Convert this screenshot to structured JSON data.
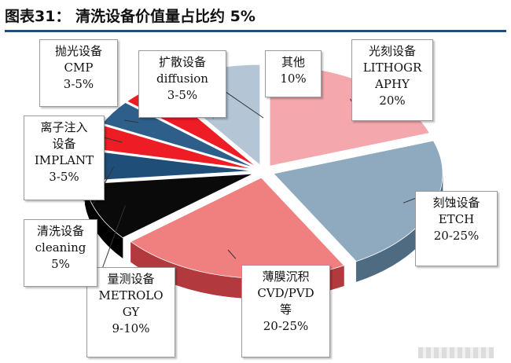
{
  "figure_title": "图表31： 清洗设备价值量占比约 5%",
  "chart_data": {
    "type": "pie",
    "title": "",
    "style": "3d-exploded",
    "slices": [
      {
        "label": "光刻设备 LITHOGRAPHY",
        "label_lines": [
          "光刻设备",
          "LITHOGR",
          "APHY",
          "20%"
        ],
        "value_text": "20%",
        "value": 20,
        "color": "#f4a7ac",
        "side": "#d98b90"
      },
      {
        "label": "刻蚀设备 ETCH",
        "label_lines": [
          "刻蚀设备",
          "ETCH",
          "20-25%"
        ],
        "value_text": "20-25%",
        "value": 22.5,
        "color": "#8faabf",
        "side": "#4f6b82"
      },
      {
        "label": "薄膜沉积 CVD/PVD等",
        "label_lines": [
          "薄膜沉积",
          "CVD/PVD",
          "等",
          "20-25%"
        ],
        "value_text": "20-25%",
        "value": 22.5,
        "color": "#f07f80",
        "side": "#b23a3e"
      },
      {
        "label": "量测设备 METROLOGY",
        "label_lines": [
          "量测设备",
          "METROLO",
          "GY",
          "9-10%"
        ],
        "value_text": "9-10%",
        "value": 9.5,
        "color": "#0a0a0a",
        "side": "#000000"
      },
      {
        "label": "清洗设备 cleaning",
        "label_lines": [
          "清洗设备",
          "cleaning",
          "5%"
        ],
        "value_text": "5%",
        "value": 5,
        "color": "#1f4e79",
        "side": "#12304c"
      },
      {
        "label": "离子注入设备 IMPLANT",
        "label_lines": [
          "离子注入",
          "设备",
          "IMPLANT",
          "3-5%"
        ],
        "value_text": "3-5%",
        "value": 4,
        "color": "#ee1c25",
        "side": "#a10f15"
      },
      {
        "label": "抛光设备 CMP",
        "label_lines": [
          "抛光设备",
          "CMP",
          "3-5%"
        ],
        "value_text": "3-5%",
        "value": 4,
        "color": "#2e5e8a",
        "side": "#1c3c5a"
      },
      {
        "label": "扩散设备 diffusion",
        "label_lines": [
          "扩散设备",
          "diffusion",
          "3-5%"
        ],
        "value_text": "3-5%",
        "value": 4,
        "color": "#ee1c25",
        "side": "#a10f15"
      },
      {
        "label": "其他",
        "label_lines": [
          "其他",
          "10%"
        ],
        "value_text": "10%",
        "value": 10,
        "color": "#b4c6d6",
        "side": "#8093a4"
      }
    ]
  }
}
